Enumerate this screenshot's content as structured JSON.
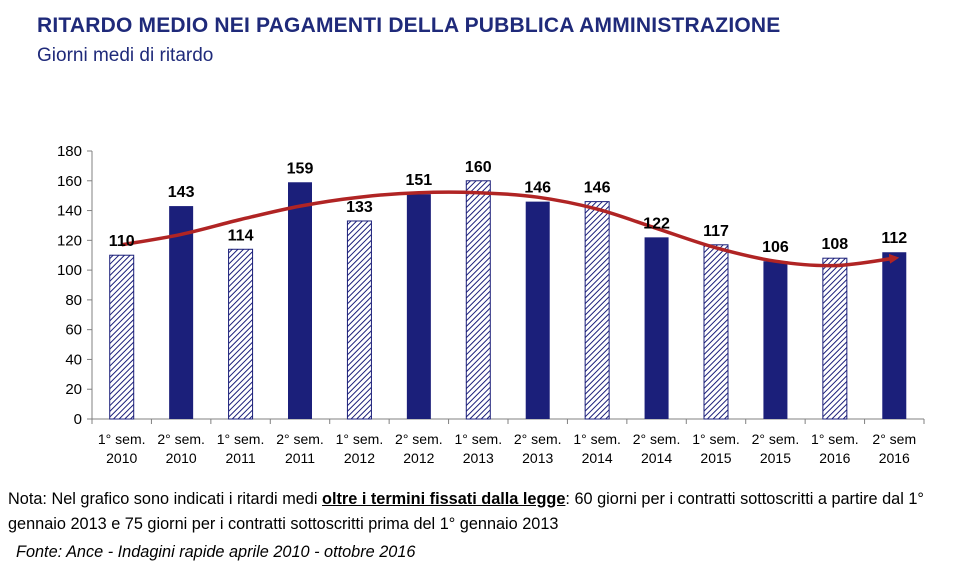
{
  "header": {
    "title": "RITARDO MEDIO NEI PAGAMENTI DELLA PUBBLICA AMMINISTRAZIONE",
    "subtitle": "Giorni medi di ritardo"
  },
  "chart_data": {
    "type": "bar",
    "title": "RITARDO MEDIO NEI PAGAMENTI DELLA PUBBLICA AMMINISTRAZIONE",
    "subtitle": "Giorni medi di ritardo",
    "categories": [
      [
        "1° sem.",
        "2010"
      ],
      [
        "2° sem.",
        "2010"
      ],
      [
        "1° sem.",
        "2011"
      ],
      [
        "2° sem.",
        "2011"
      ],
      [
        "1° sem.",
        "2012"
      ],
      [
        "2° sem.",
        "2012"
      ],
      [
        "1° sem.",
        "2013"
      ],
      [
        "2° sem.",
        "2013"
      ],
      [
        "1° sem.",
        "2014"
      ],
      [
        "2° sem.",
        "2014"
      ],
      [
        "1° sem.",
        "2015"
      ],
      [
        "2° sem.",
        "2015"
      ],
      [
        "1° sem.",
        "2016"
      ],
      [
        "2° sem",
        "2016"
      ]
    ],
    "values": [
      110,
      143,
      114,
      159,
      133,
      151,
      160,
      146,
      146,
      122,
      117,
      106,
      108,
      112
    ],
    "bar_styles": [
      "hatched",
      "solid",
      "hatched",
      "solid",
      "hatched",
      "solid",
      "hatched",
      "solid",
      "hatched",
      "solid",
      "hatched",
      "solid",
      "hatched",
      "solid"
    ],
    "ylim": [
      0,
      180
    ],
    "yticks": [
      0,
      20,
      40,
      60,
      80,
      100,
      120,
      140,
      160,
      180
    ],
    "trend_line": {
      "shape": "smooth curve with arrowhead",
      "points": [
        117,
        124,
        134,
        143,
        149,
        152,
        152,
        149,
        141,
        128,
        115,
        106,
        103,
        108
      ]
    },
    "colors": {
      "bar": "#1b1f7a",
      "hatch": "#1b1f7a",
      "trend": "#b02424",
      "axis": "#808080"
    }
  },
  "note": {
    "prefix": "Nota: Nel grafico sono indicati i ritardi medi ",
    "emphasis": "oltre i termini fissati dalla legge",
    "suffix": ": 60 giorni per i contratti sottoscritti a partire dal 1° gennaio 2013 e 75 giorni per i contratti sottoscritti prima del 1° gennaio 2013"
  },
  "source": "Fonte: Ance - Indagini rapide aprile 2010 - ottobre 2016"
}
